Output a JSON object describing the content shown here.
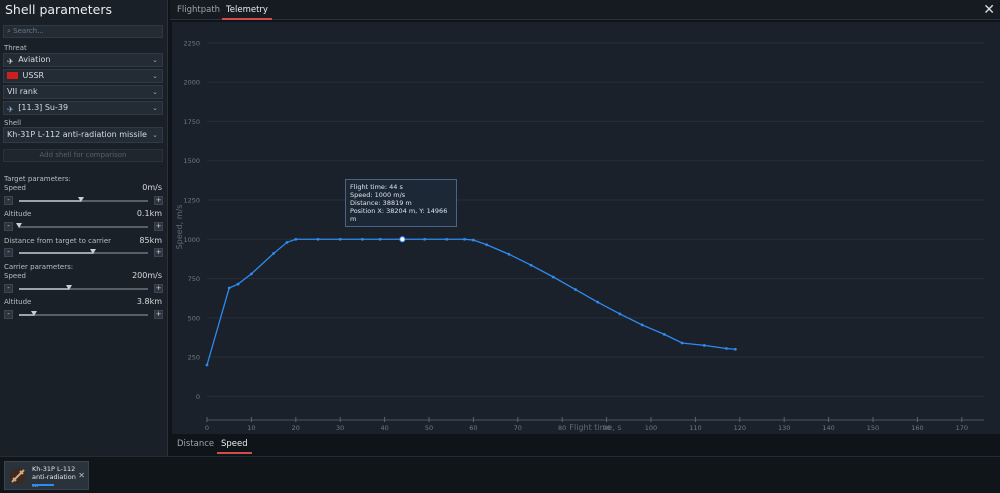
{
  "sidebar": {
    "title": "Shell parameters",
    "search_placeholder": "Search...",
    "threat_label": "Threat",
    "threat_type": "Aviation",
    "country": "USSR",
    "rank": "VII rank",
    "vehicle": "[11.3] Su-39",
    "shell_label": "Shell",
    "shell": "Kh-31P L-112 anti-radiation missile",
    "add_shell": "Add shell for comparison",
    "target_params_label": "Target parameters:",
    "target_speed_label": "Speed",
    "target_speed_value": "0m/s",
    "target_speed_level": 0.48,
    "target_altitude_label": "Altitude",
    "target_altitude_value": "0.1km",
    "target_altitude_level": 0.0,
    "distance_label": "Distance from target to carrier",
    "distance_value": "85km",
    "distance_level": 0.57,
    "carrier_params_label": "Carrier parameters:",
    "carrier_speed_label": "Speed",
    "carrier_speed_value": "200m/s",
    "carrier_speed_level": 0.39,
    "carrier_altitude_label": "Altitude",
    "carrier_altitude_value": "3.8km",
    "carrier_altitude_level": 0.12,
    "minus": "-",
    "plus": "+"
  },
  "tabs": {
    "flightpath": "Flightpath",
    "telemetry": "Telemetry"
  },
  "bottom_tabs": {
    "distance": "Distance",
    "speed": "Speed"
  },
  "tray": {
    "card_name": "Kh-31P L-112 anti-radiation ..."
  },
  "tooltip": {
    "line1": "Flight time: 44 s",
    "line2": "Speed: 1000 m/s",
    "line3": "Distance: 38819 m",
    "line4": "Position X: 38204 m, Y: 14966 m"
  },
  "chart_data": {
    "type": "line",
    "xlabel": "Flight time, s",
    "ylabel": "Speed, m/s",
    "xlim": [
      0,
      175
    ],
    "ylim": [
      -150,
      2300
    ],
    "xticks": [
      0,
      10,
      20,
      30,
      40,
      50,
      60,
      70,
      80,
      90,
      100,
      110,
      120,
      130,
      140,
      150,
      160,
      170
    ],
    "yticks": [
      0,
      250,
      500,
      750,
      1000,
      1250,
      1500,
      1750,
      2000,
      2250
    ],
    "grid": true,
    "color": "#2e8bf0",
    "highlight_x": 44,
    "x": [
      0,
      5,
      7,
      10,
      15,
      18,
      20,
      25,
      30,
      35,
      39,
      44,
      49,
      54,
      58,
      60,
      63,
      68,
      73,
      78,
      83,
      88,
      93,
      98,
      103,
      107,
      112,
      117,
      119
    ],
    "y": [
      200,
      690,
      715,
      780,
      910,
      980,
      1000,
      1000,
      1000,
      1000,
      1000,
      1000,
      1000,
      1000,
      1000,
      995,
      965,
      905,
      835,
      760,
      680,
      600,
      525,
      455,
      395,
      340,
      325,
      305,
      300
    ]
  }
}
